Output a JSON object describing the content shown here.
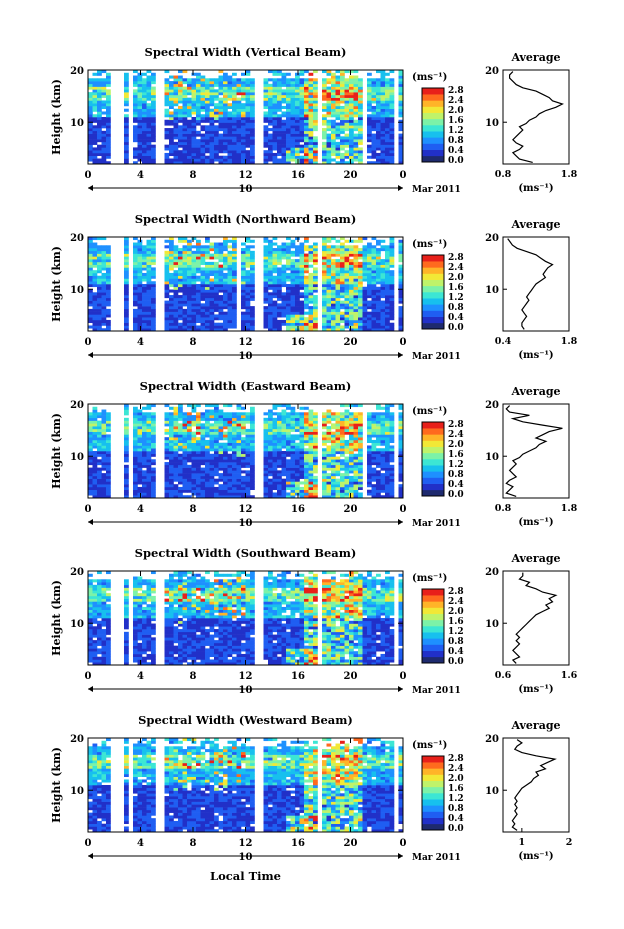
{
  "figure": {
    "xlabel": "Local Time",
    "date_label": "Mar 2011",
    "ylabel": "Height (km)",
    "colorbar_unit": "(ms⁻¹)",
    "average_title": "Average",
    "average_xunit": "(ms⁻¹)"
  },
  "colors": {
    "scale": [
      "#1e2a6e",
      "#2130c8",
      "#1f5ef2",
      "#1e90ff",
      "#17c0ee",
      "#3ce6d4",
      "#7cf2a8",
      "#bff36a",
      "#f2e836",
      "#ffb428",
      "#ff6a1e",
      "#e8201a"
    ]
  },
  "chart_data": [
    {
      "type": "heatmap",
      "title": "Spectral Width (Vertical Beam)",
      "x_ticks": [
        "0",
        "4",
        "8",
        "12",
        "16",
        "20",
        "0"
      ],
      "x_day_label": "10",
      "y_ticks": [
        "20",
        "10"
      ],
      "xlim": [
        0,
        24
      ],
      "ylim": [
        2,
        20
      ],
      "colorbar_ticks": [
        "2.8",
        "2.4",
        "2.0",
        "1.6",
        "1.2",
        "0.8",
        "0.4",
        "0.0"
      ],
      "gaps": [
        [
          1.6,
          2.6
        ],
        [
          3.2,
          3.5
        ],
        [
          5.3,
          5.8
        ],
        [
          12.8,
          13.4
        ],
        [
          17.4,
          17.8
        ],
        [
          20.9,
          21.3
        ],
        [
          23.2,
          23.5
        ]
      ],
      "average": {
        "type": "line",
        "xlim": [
          0.8,
          1.8
        ],
        "x_ticks": [
          "0.8",
          "1.8"
        ],
        "y_ticks": [
          "20",
          "10"
        ],
        "profile": [
          1.25,
          1.05,
          1.0,
          0.95,
          1.05,
          1.1,
          1.0,
          0.95,
          1.0,
          1.05,
          1.1,
          1.05,
          1.15,
          1.2,
          1.3,
          1.35,
          1.45,
          1.6,
          1.7,
          1.55,
          1.5,
          1.4,
          1.3,
          1.1,
          1.0,
          0.95,
          0.9,
          0.9,
          0.95
        ]
      }
    },
    {
      "type": "heatmap",
      "title": "Spectral Width (Northward Beam)",
      "x_ticks": [
        "0",
        "4",
        "8",
        "12",
        "16",
        "20",
        "0"
      ],
      "x_day_label": "10",
      "y_ticks": [
        "20",
        "10"
      ],
      "xlim": [
        0,
        24
      ],
      "ylim": [
        2,
        20
      ],
      "colorbar_ticks": [
        "2.8",
        "2.4",
        "2.0",
        "1.6",
        "1.2",
        "0.8",
        "0.4",
        "0.0"
      ],
      "gaps": [
        [
          1.6,
          2.6
        ],
        [
          3.2,
          3.5
        ],
        [
          5.3,
          5.8
        ],
        [
          11.4,
          11.6
        ],
        [
          12.8,
          13.4
        ],
        [
          17.4,
          17.8
        ],
        [
          21.8,
          22.1
        ],
        [
          23.2,
          23.5
        ]
      ],
      "average": {
        "type": "line",
        "xlim": [
          0.4,
          1.8
        ],
        "x_ticks": [
          "0.4",
          "1.8"
        ],
        "y_ticks": [
          "20",
          "10"
        ],
        "profile": [
          0.85,
          0.8,
          0.8,
          0.85,
          0.9,
          0.85,
          0.8,
          0.85,
          0.9,
          0.95,
          0.9,
          0.95,
          1.0,
          1.05,
          1.1,
          1.2,
          1.3,
          1.25,
          1.3,
          1.35,
          1.45,
          1.3,
          1.2,
          1.1,
          0.9,
          0.7,
          0.6,
          0.55,
          0.5
        ]
      }
    },
    {
      "type": "heatmap",
      "title": "Spectral Width (Eastward Beam)",
      "x_ticks": [
        "0",
        "4",
        "8",
        "12",
        "16",
        "20",
        "0"
      ],
      "x_day_label": "10",
      "y_ticks": [
        "20",
        "10"
      ],
      "xlim": [
        0,
        24
      ],
      "ylim": [
        2,
        20
      ],
      "colorbar_ticks": [
        "2.8",
        "2.4",
        "2.0",
        "1.6",
        "1.2",
        "0.8",
        "0.4",
        "0.0"
      ],
      "gaps": [
        [
          1.6,
          2.6
        ],
        [
          3.2,
          3.5
        ],
        [
          5.3,
          5.8
        ],
        [
          12.8,
          13.4
        ],
        [
          17.4,
          17.8
        ],
        [
          20.9,
          21.3
        ],
        [
          23.2,
          23.5
        ]
      ],
      "average": {
        "type": "line",
        "xlim": [
          0.8,
          1.8
        ],
        "x_ticks": [
          "0.8",
          "1.8"
        ],
        "y_ticks": [
          "20",
          "10"
        ],
        "profile": [
          1.0,
          0.85,
          0.9,
          0.95,
          0.85,
          0.9,
          1.0,
          0.95,
          0.9,
          0.95,
          1.0,
          0.95,
          1.05,
          1.1,
          1.2,
          1.3,
          1.35,
          1.45,
          1.3,
          1.4,
          1.5,
          1.7,
          1.4,
          1.1,
          0.95,
          1.2,
          0.9,
          0.85,
          0.9
        ]
      }
    },
    {
      "type": "heatmap",
      "title": "Spectral Width (Southward Beam)",
      "x_ticks": [
        "0",
        "4",
        "8",
        "12",
        "16",
        "20",
        "0"
      ],
      "x_day_label": "10",
      "y_ticks": [
        "20",
        "10"
      ],
      "xlim": [
        0,
        24
      ],
      "ylim": [
        2,
        20
      ],
      "colorbar_ticks": [
        "2.8",
        "2.4",
        "2.0",
        "1.6",
        "1.2",
        "0.8",
        "0.4",
        "0.0"
      ],
      "gaps": [
        [
          1.6,
          2.6
        ],
        [
          3.2,
          3.5
        ],
        [
          5.3,
          5.8
        ],
        [
          12.8,
          13.4
        ],
        [
          17.4,
          17.8
        ],
        [
          21.8,
          22.1
        ],
        [
          23.2,
          23.5
        ]
      ],
      "average": {
        "type": "line",
        "xlim": [
          0.6,
          1.6
        ],
        "x_ticks": [
          "0.6",
          "1.6"
        ],
        "y_ticks": [
          "20",
          "10"
        ],
        "profile": [
          0.8,
          0.75,
          0.85,
          0.8,
          0.75,
          0.8,
          0.85,
          0.8,
          0.85,
          0.8,
          0.85,
          0.9,
          0.95,
          1.0,
          1.05,
          1.1,
          1.2,
          1.3,
          1.25,
          1.35,
          1.3,
          1.4,
          1.2,
          1.1,
          0.95,
          1.0,
          0.85,
          0.9,
          0.9
        ]
      }
    },
    {
      "type": "heatmap",
      "title": "Spectral Width (Westward Beam)",
      "x_ticks": [
        "0",
        "4",
        "8",
        "12",
        "16",
        "20",
        "0"
      ],
      "x_day_label": "10",
      "y_ticks": [
        "20",
        "10"
      ],
      "xlim": [
        0,
        24
      ],
      "ylim": [
        2,
        20
      ],
      "colorbar_ticks": [
        "2.8",
        "2.4",
        "2.0",
        "1.6",
        "1.2",
        "0.8",
        "0.4",
        "0.0"
      ],
      "gaps": [
        [
          1.6,
          2.6
        ],
        [
          3.0,
          3.3
        ],
        [
          3.6,
          3.8
        ],
        [
          5.3,
          5.8
        ],
        [
          12.8,
          13.4
        ],
        [
          17.4,
          17.8
        ],
        [
          21.8,
          22.1
        ],
        [
          23.2,
          23.5
        ]
      ],
      "average": {
        "type": "line",
        "xlim": [
          0.6,
          2.0
        ],
        "x_ticks": [
          "1",
          "2"
        ],
        "y_ticks": [
          "20",
          "10"
        ],
        "profile": [
          0.9,
          0.8,
          0.85,
          0.8,
          0.85,
          0.9,
          0.85,
          0.9,
          0.85,
          0.9,
          0.85,
          0.9,
          0.95,
          1.0,
          1.1,
          1.2,
          1.25,
          1.35,
          1.3,
          1.5,
          1.4,
          1.55,
          1.7,
          1.3,
          1.0,
          0.85,
          0.9,
          1.0,
          0.9
        ]
      }
    }
  ]
}
